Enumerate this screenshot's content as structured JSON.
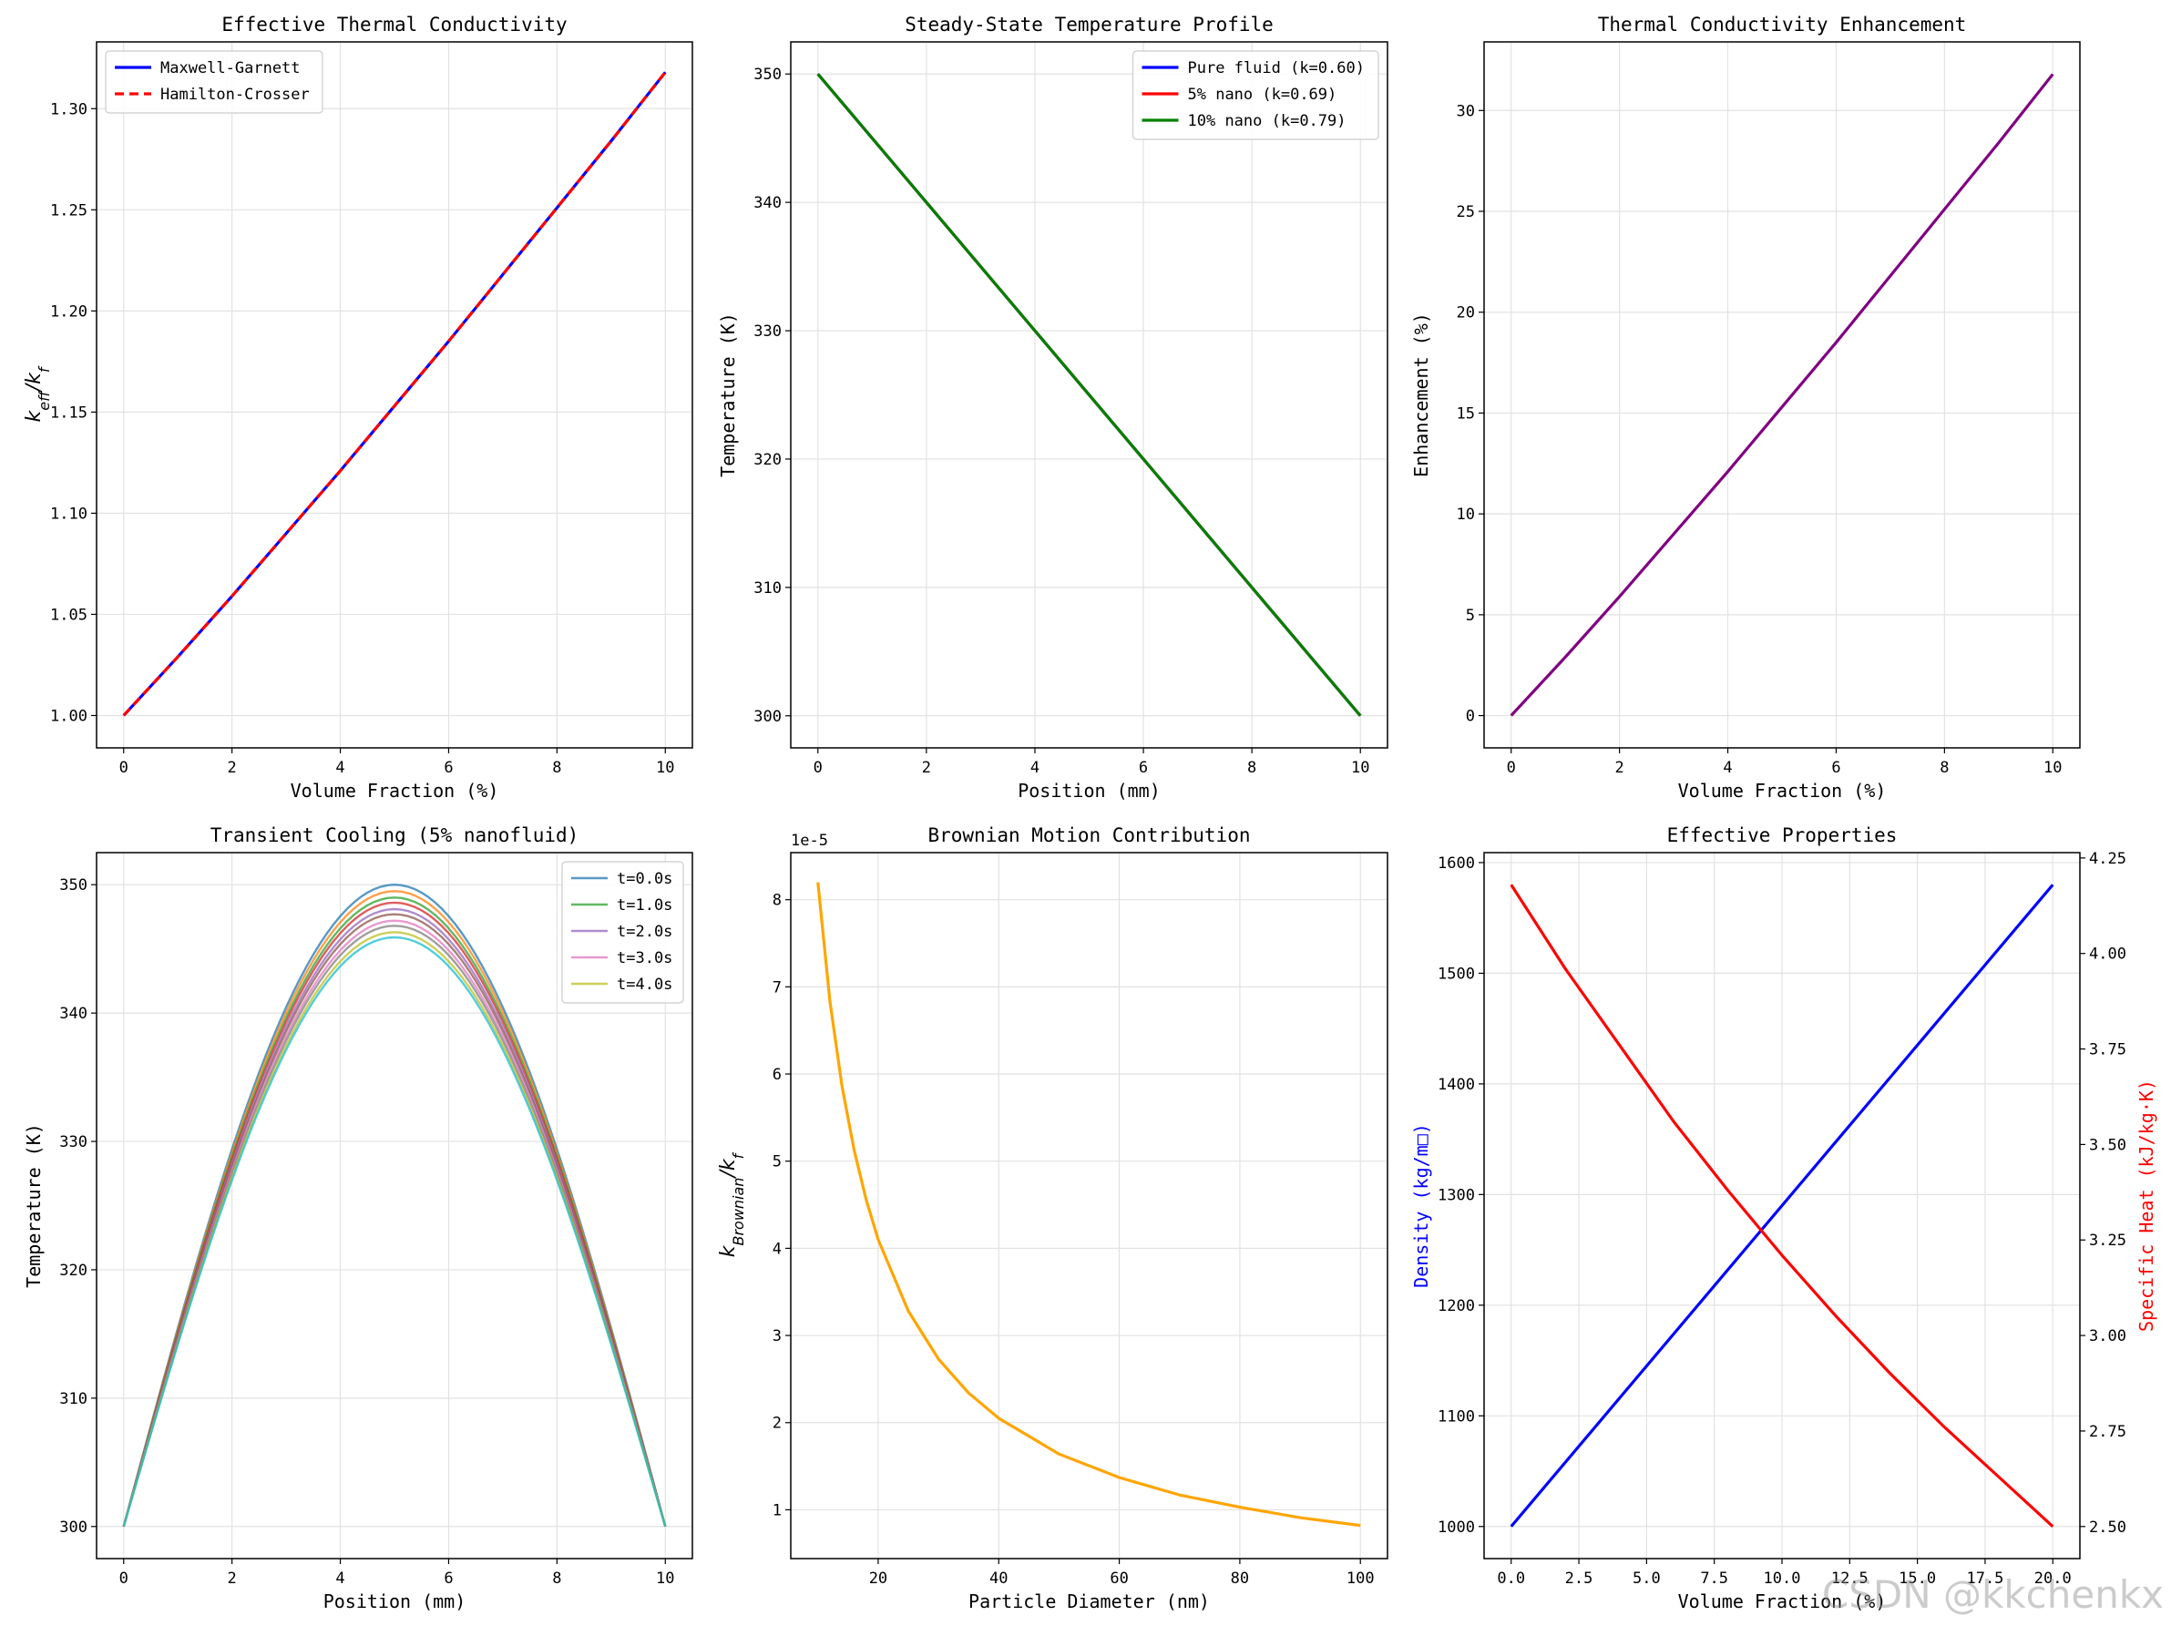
{
  "watermark": "CSDN @kkchenkx",
  "chart_data": [
    {
      "type": "line",
      "title": "Effective Thermal Conductivity",
      "xlabel": "Volume Fraction (%)",
      "ylabel": "k_eff/k_f",
      "ylabel_parts": {
        "base": "k",
        "sub": "eff",
        "mid": "/k",
        "sub2": "f"
      },
      "xlim": [
        -0.5,
        10.5
      ],
      "ylim": [
        0.984,
        1.333
      ],
      "xticks": [
        0,
        2,
        4,
        6,
        8,
        10
      ],
      "xtick_labels": [
        "0",
        "2",
        "4",
        "6",
        "8",
        "10"
      ],
      "yticks": [
        1.0,
        1.05,
        1.1,
        1.15,
        1.2,
        1.25,
        1.3
      ],
      "ytick_labels": [
        "1.00",
        "1.05",
        "1.10",
        "1.15",
        "1.20",
        "1.25",
        "1.30"
      ],
      "legend": "top-left",
      "series": [
        {
          "name": "Maxwell-Garnett",
          "color": "#0000ff",
          "dash": "none",
          "x": [
            0,
            1,
            2,
            3,
            4,
            5,
            6,
            7,
            8,
            9,
            10
          ],
          "y": [
            1.0,
            1.029,
            1.059,
            1.09,
            1.121,
            1.153,
            1.185,
            1.218,
            1.251,
            1.284,
            1.318
          ]
        },
        {
          "name": "Hamilton-Crosser",
          "color": "#ff0000",
          "dash": "10,6",
          "x": [
            0,
            1,
            2,
            3,
            4,
            5,
            6,
            7,
            8,
            9,
            10
          ],
          "y": [
            1.0,
            1.029,
            1.059,
            1.09,
            1.121,
            1.153,
            1.185,
            1.218,
            1.251,
            1.284,
            1.318
          ]
        }
      ]
    },
    {
      "type": "line",
      "title": "Steady-State Temperature Profile",
      "xlabel": "Position (mm)",
      "ylabel": "Temperature (K)",
      "xlim": [
        -0.5,
        10.5
      ],
      "ylim": [
        297.5,
        352.5
      ],
      "xticks": [
        0,
        2,
        4,
        6,
        8,
        10
      ],
      "xtick_labels": [
        "0",
        "2",
        "4",
        "6",
        "8",
        "10"
      ],
      "yticks": [
        300,
        310,
        320,
        330,
        340,
        350
      ],
      "ytick_labels": [
        "300",
        "310",
        "320",
        "330",
        "340",
        "350"
      ],
      "legend": "top-right",
      "series": [
        {
          "name": "Pure fluid (k=0.60)",
          "color": "#0000ff",
          "dash": "none",
          "x": [
            0,
            10
          ],
          "y": [
            350,
            300
          ]
        },
        {
          "name": "5% nano (k=0.69)",
          "color": "#ff0000",
          "dash": "none",
          "x": [
            0,
            10
          ],
          "y": [
            350,
            300
          ]
        },
        {
          "name": "10% nano (k=0.79)",
          "color": "#008000",
          "dash": "none",
          "x": [
            0,
            10
          ],
          "y": [
            350,
            300
          ]
        }
      ]
    },
    {
      "type": "line",
      "title": "Thermal Conductivity Enhancement",
      "xlabel": "Volume Fraction (%)",
      "ylabel": "Enhancement (%)",
      "xlim": [
        -0.5,
        10.5
      ],
      "ylim": [
        -1.6,
        33.4
      ],
      "xticks": [
        0,
        2,
        4,
        6,
        8,
        10
      ],
      "xtick_labels": [
        "0",
        "2",
        "4",
        "6",
        "8",
        "10"
      ],
      "yticks": [
        0,
        5,
        10,
        15,
        20,
        25,
        30
      ],
      "ytick_labels": [
        "0",
        "5",
        "10",
        "15",
        "20",
        "25",
        "30"
      ],
      "legend": "none",
      "series": [
        {
          "name": "Enhancement",
          "color": "#800080",
          "dash": "none",
          "x": [
            0,
            1,
            2,
            3,
            4,
            5,
            6,
            7,
            8,
            9,
            10
          ],
          "y": [
            0,
            2.9,
            5.9,
            9.0,
            12.1,
            15.3,
            18.5,
            21.8,
            25.1,
            28.4,
            31.8
          ]
        }
      ]
    },
    {
      "type": "line",
      "title": "Transient Cooling (5% nanofluid)",
      "xlabel": "Position (mm)",
      "ylabel": "Temperature (K)",
      "xlim": [
        -0.5,
        10.5
      ],
      "ylim": [
        297.5,
        352.5
      ],
      "xticks": [
        0,
        2,
        4,
        6,
        8,
        10
      ],
      "xtick_labels": [
        "0",
        "2",
        "4",
        "6",
        "8",
        "10"
      ],
      "yticks": [
        300,
        310,
        320,
        330,
        340,
        350
      ],
      "ytick_labels": [
        "300",
        "310",
        "320",
        "330",
        "340",
        "350"
      ],
      "legend": "top-right",
      "profile": "sine",
      "base": 300,
      "series": [
        {
          "name": "t=0.0s",
          "color": "#1f77b4",
          "peak": 50.0,
          "in_legend": true
        },
        {
          "name": "",
          "color": "#ff7f0e",
          "peak": 49.5,
          "in_legend": false
        },
        {
          "name": "t=1.0s",
          "color": "#2ca02c",
          "peak": 49.0,
          "in_legend": true
        },
        {
          "name": "",
          "color": "#d62728",
          "peak": 48.6,
          "in_legend": false
        },
        {
          "name": "t=2.0s",
          "color": "#9467bd",
          "peak": 48.1,
          "in_legend": true
        },
        {
          "name": "",
          "color": "#8c564b",
          "peak": 47.7,
          "in_legend": false
        },
        {
          "name": "t=3.0s",
          "color": "#e377c2",
          "peak": 47.2,
          "in_legend": true
        },
        {
          "name": "",
          "color": "#7f7f7f",
          "peak": 46.8,
          "in_legend": false
        },
        {
          "name": "t=4.0s",
          "color": "#bcbd22",
          "peak": 46.3,
          "in_legend": true
        },
        {
          "name": "",
          "color": "#17becf",
          "peak": 45.9,
          "in_legend": false
        }
      ]
    },
    {
      "type": "line",
      "title": "Brownian Motion Contribution",
      "xlabel": "Particle Diameter (nm)",
      "ylabel": "k_Brownian/k_f",
      "ylabel_parts": {
        "base": "k",
        "sub": "Brownian",
        "mid": "/k",
        "sub2": "f"
      },
      "offset_label": "1e-5",
      "xlim": [
        5.5,
        104.5
      ],
      "ylim": [
        0.44,
        8.54
      ],
      "xticks": [
        20,
        40,
        60,
        80,
        100
      ],
      "xtick_labels": [
        "20",
        "40",
        "60",
        "80",
        "100"
      ],
      "yticks": [
        1,
        2,
        3,
        4,
        5,
        6,
        7,
        8
      ],
      "ytick_labels": [
        "1",
        "2",
        "3",
        "4",
        "5",
        "6",
        "7",
        "8"
      ],
      "legend": "none",
      "series": [
        {
          "name": "Brownian",
          "color": "#ffa500",
          "dash": "none",
          "x": [
            10,
            12,
            14,
            16,
            18,
            20,
            25,
            30,
            35,
            40,
            50,
            60,
            70,
            80,
            90,
            100
          ],
          "y": [
            8.2,
            6.83,
            5.86,
            5.13,
            4.56,
            4.1,
            3.28,
            2.73,
            2.34,
            2.05,
            1.64,
            1.37,
            1.17,
            1.03,
            0.91,
            0.82
          ]
        }
      ]
    },
    {
      "type": "line",
      "title": "Effective Properties",
      "xlabel": "Volume Fraction (%)",
      "ylabel": "Density (kg/m□)",
      "ylabel_right": "Specific Heat (kJ/kg·K)",
      "xlim": [
        -1.0,
        21.0
      ],
      "ylim": [
        971,
        1609
      ],
      "ylim_right": [
        2.416,
        4.264
      ],
      "xticks": [
        0,
        2.5,
        5,
        7.5,
        10,
        12.5,
        15,
        17.5,
        20
      ],
      "xtick_labels": [
        "0.0",
        "2.5",
        "5.0",
        "7.5",
        "10.0",
        "12.5",
        "15.0",
        "17.5",
        "20.0"
      ],
      "yticks": [
        1000,
        1100,
        1200,
        1300,
        1400,
        1500,
        1600
      ],
      "ytick_labels": [
        "1000",
        "1100",
        "1200",
        "1300",
        "1400",
        "1500",
        "1600"
      ],
      "yticks_right": [
        2.5,
        2.75,
        3.0,
        3.25,
        3.5,
        3.75,
        4.0,
        4.25
      ],
      "ytick_labels_right": [
        "2.50",
        "2.75",
        "3.00",
        "3.25",
        "3.50",
        "3.75",
        "4.00",
        "4.25"
      ],
      "ylabel_color": "#0000ff",
      "ylabel_right_color": "#ff0000",
      "legend": "none",
      "series": [
        {
          "name": "Density",
          "axis": "left",
          "color": "#0000ff",
          "dash": "none",
          "x": [
            0,
            20
          ],
          "y": [
            1000,
            1580
          ]
        },
        {
          "name": "Specific Heat",
          "axis": "right",
          "color": "#ff0000",
          "dash": "none",
          "x": [
            0,
            2,
            4,
            6,
            8,
            10,
            12,
            14,
            16,
            18,
            20
          ],
          "y": [
            4.18,
            3.96,
            3.76,
            3.56,
            3.38,
            3.21,
            3.05,
            2.9,
            2.76,
            2.63,
            2.5
          ]
        }
      ]
    }
  ]
}
